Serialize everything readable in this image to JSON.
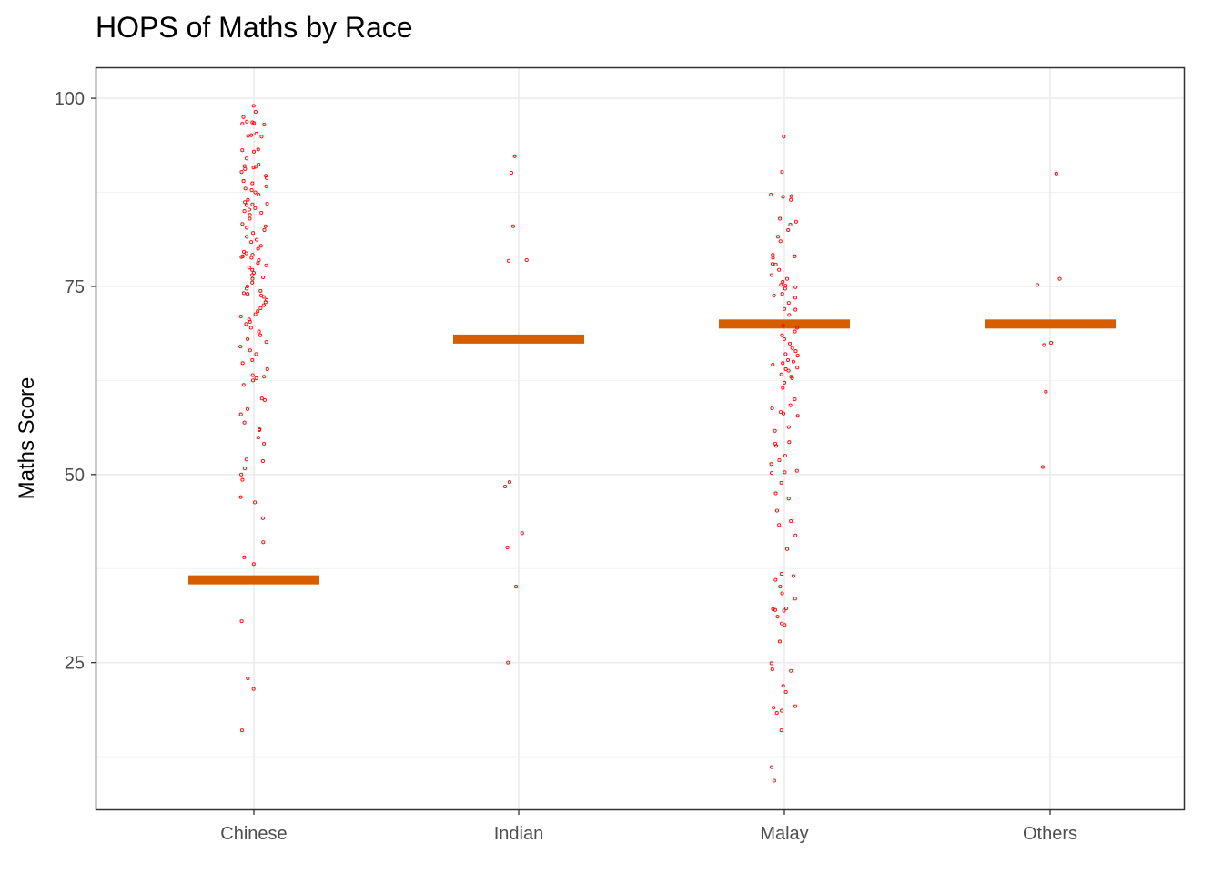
{
  "chart_data": {
    "type": "scatter",
    "title": "HOPS of Maths by Race",
    "xlabel": "",
    "ylabel": "Maths Score",
    "categories": [
      "Chinese",
      "Indian",
      "Malay",
      "Others"
    ],
    "ylim": [
      5.5,
      104
    ],
    "yticks": [
      25,
      50,
      75,
      100
    ],
    "grid": true,
    "point_color": "#ff0000",
    "summary_color": "#d55e00",
    "summary_values": [
      36,
      68,
      70,
      70
    ],
    "points": [
      [
        99,
        98.2,
        97.5,
        96.9,
        96.8,
        96.7,
        96.6,
        96.5,
        95.3,
        95.1,
        95,
        94.9,
        93.2,
        93.1,
        92.9,
        92,
        91.2,
        91,
        90.9,
        90.8,
        90.6,
        90.2,
        89.7,
        89.4,
        89,
        88.7,
        88.3,
        88,
        87.8,
        87.5,
        87.2,
        86.5,
        86.2,
        86,
        85.9,
        85.8,
        85.4,
        85.2,
        85,
        84.8,
        84.5,
        84,
        83.3,
        83,
        82.8,
        82.5,
        82.1,
        81.6,
        81.2,
        80.9,
        80.4,
        80,
        79.6,
        79.4,
        79.2,
        79,
        78.9,
        78.8,
        78.5,
        78.1,
        77.8,
        77.5,
        77.2,
        76.8,
        76.5,
        76.2,
        76,
        75.5,
        75,
        74.7,
        74.4,
        74.1,
        74,
        73.8,
        73.6,
        73.2,
        72.9,
        72.5,
        72.1,
        71.7,
        71.3,
        71,
        70.6,
        70.3,
        70,
        69.5,
        69,
        68.5,
        68,
        67.6,
        67,
        66.5,
        66,
        65.2,
        64.8,
        64,
        63.2,
        63,
        62.8,
        62.5,
        61.9,
        60.1,
        59.9,
        58.7,
        58,
        56.9,
        56,
        55.9,
        54.9,
        54.1,
        52,
        51.8,
        50.8,
        50,
        49.3,
        47,
        46.3,
        44.2,
        41,
        39,
        38.1,
        30.5,
        22.9,
        21.5,
        16
      ],
      [
        92.3,
        90.1,
        83,
        78.5,
        78.4,
        49,
        48.4,
        42.2,
        40.3,
        35.1,
        25
      ],
      [
        94.9,
        90.2,
        87.2,
        87,
        86.9,
        86.5,
        84,
        83.6,
        83.2,
        82.5,
        81.6,
        81,
        79.2,
        79,
        78.8,
        78,
        77.9,
        77.2,
        76.5,
        76,
        75.6,
        75.2,
        75.1,
        74.9,
        74.7,
        74,
        73.8,
        73.5,
        72.8,
        72,
        71.9,
        71.2,
        69.8,
        69.5,
        69,
        68.5,
        68,
        67.4,
        66.8,
        66.4,
        66,
        65.8,
        65.2,
        65,
        64.8,
        64.6,
        64.2,
        64,
        63.8,
        63.3,
        63,
        62.8,
        62.2,
        61.5,
        60,
        59.2,
        58.8,
        58.3,
        58.1,
        57.8,
        56.3,
        55.8,
        54.3,
        54.1,
        53.8,
        52.5,
        51.9,
        51.4,
        50.5,
        50.3,
        50.2,
        48.9,
        47.5,
        46.8,
        45.2,
        43.8,
        43.3,
        41.9,
        40.1,
        36.8,
        36.5,
        36,
        35.1,
        34.2,
        33.5,
        32.2,
        32.1,
        32,
        31.9,
        31.1,
        30.2,
        30,
        27.8,
        24.9,
        24.1,
        23.9,
        21.9,
        21.1,
        19.2,
        19,
        18.6,
        18.3,
        16,
        11.1,
        9.3
      ],
      [
        90,
        76,
        75.2,
        67.5,
        67.2,
        61,
        51
      ]
    ]
  }
}
